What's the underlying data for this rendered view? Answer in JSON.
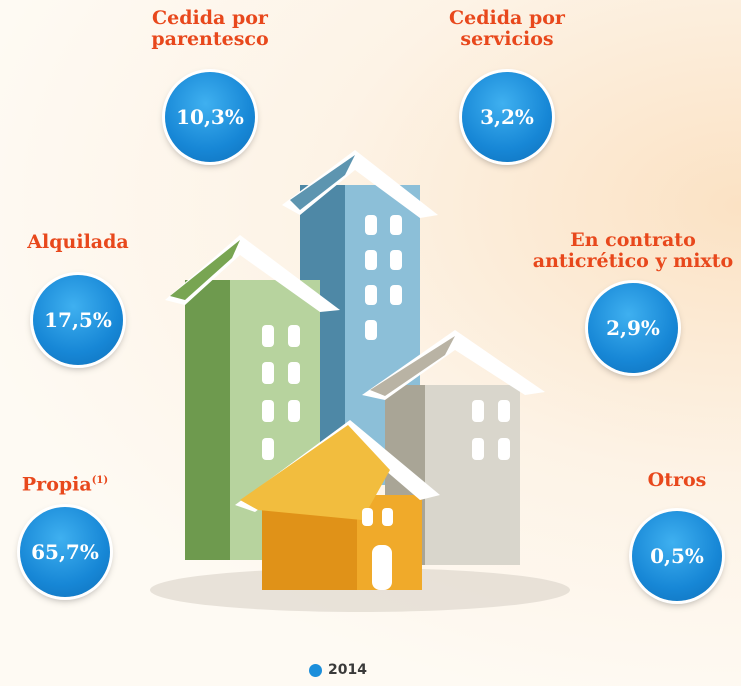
{
  "items": [
    {
      "label": [
        "Cedida por",
        "parentesco"
      ],
      "value": "10,3%"
    },
    {
      "label": [
        "Cedida por",
        "servicios"
      ],
      "value": "3,2%"
    },
    {
      "label": [
        "Alquilada"
      ],
      "value": "17,5%"
    },
    {
      "label": [
        "En contrato",
        "anticrético y mixto"
      ],
      "value": "2,9%"
    },
    {
      "label": [
        "Propia"
      ],
      "superscript": "(1)",
      "value": "65,7%"
    },
    {
      "label": [
        "Otros"
      ],
      "value": "0,5%"
    }
  ],
  "legend": {
    "label": "2014"
  }
}
